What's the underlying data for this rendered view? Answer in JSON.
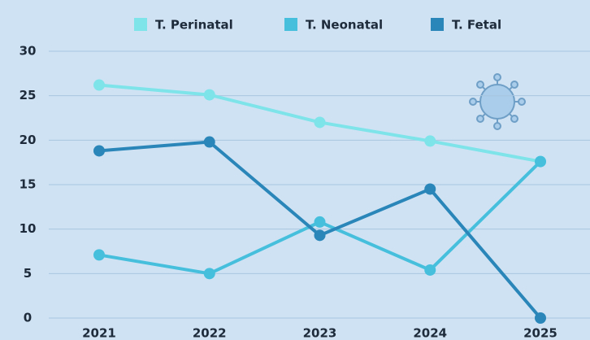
{
  "chart_data": {
    "type": "line",
    "categories": [
      "2021",
      "2022",
      "2023",
      "2024",
      "2025"
    ],
    "series": [
      {
        "name": "T. Perinatal",
        "color": "#7fe3ea",
        "values": [
          26.2,
          25.1,
          22,
          19.9,
          17.6
        ]
      },
      {
        "name": "T. Neonatal",
        "color": "#46bfdd",
        "values": [
          7.1,
          5.0,
          10.8,
          5.4,
          17.6
        ]
      },
      {
        "name": "T. Fetal",
        "color": "#2a86b8",
        "values": [
          18.8,
          19.8,
          9.3,
          14.5,
          0
        ]
      }
    ],
    "ylim": [
      0,
      30
    ],
    "yticks": [
      0,
      5,
      10,
      15,
      20,
      25,
      30
    ],
    "grid": true,
    "legend": "top"
  }
}
